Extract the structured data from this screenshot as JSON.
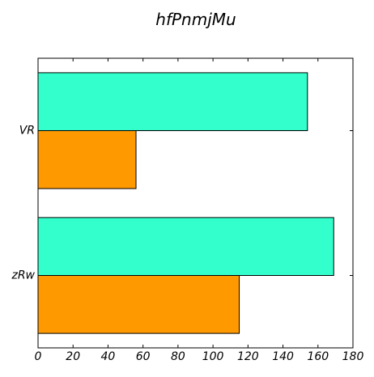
{
  "chart_data": {
    "type": "bar",
    "orientation": "horizontal",
    "title": "hfPnmjMu",
    "xlabel": "",
    "ylabel": "",
    "categories": [
      "VR",
      "zRw"
    ],
    "series": [
      {
        "values": [
          56,
          115
        ],
        "color": "#ff9900"
      },
      {
        "values": [
          154,
          169
        ],
        "color": "#33ffcc"
      }
    ],
    "xlim": [
      0,
      180
    ],
    "xticks": [
      0,
      20,
      40,
      60,
      80,
      100,
      120,
      140,
      160,
      180
    ],
    "grid": false,
    "legend": "none"
  }
}
